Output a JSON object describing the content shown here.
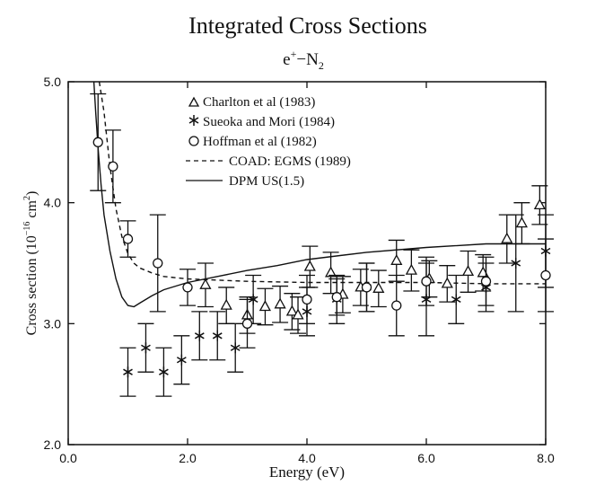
{
  "chart_data": {
    "type": "scatter",
    "title": "Integrated Cross Sections",
    "subtitle": {
      "base": "e",
      "sup": "+",
      "dash": "−",
      "base2": "N",
      "sub": "2"
    },
    "xlabel": "Energy (eV)",
    "ylabel": {
      "pre": "Cross section (10",
      "sup": "−16",
      "mid": " cm",
      "sup2": "2",
      "post": ")"
    },
    "xlim": [
      0.0,
      8.0
    ],
    "ylim": [
      2.0,
      5.0
    ],
    "xticks": [
      0.0,
      2.0,
      4.0,
      6.0,
      8.0
    ],
    "xtick_labels": [
      "0.0",
      "2.0",
      "4.0",
      "6.0",
      "8.0"
    ],
    "yticks": [
      2.0,
      3.0,
      4.0,
      5.0
    ],
    "ytick_labels": [
      "2.0",
      "3.0",
      "4.0",
      "5.0"
    ],
    "grid": false,
    "legend_position": "top-center",
    "series": [
      {
        "name": "Charlton et al (1983)",
        "kind": "points",
        "marker": "triangle",
        "points": [
          {
            "x": 2.3,
            "y": 3.32,
            "err": 0.18
          },
          {
            "x": 2.65,
            "y": 3.15,
            "err": 0.15
          },
          {
            "x": 3.0,
            "y": 3.07,
            "err": 0.15
          },
          {
            "x": 3.3,
            "y": 3.14,
            "err": 0.15
          },
          {
            "x": 3.55,
            "y": 3.16,
            "err": 0.15
          },
          {
            "x": 3.75,
            "y": 3.1,
            "err": 0.15
          },
          {
            "x": 3.85,
            "y": 3.07,
            "err": 0.15
          },
          {
            "x": 4.05,
            "y": 3.47,
            "err": 0.17
          },
          {
            "x": 4.4,
            "y": 3.42,
            "err": 0.17
          },
          {
            "x": 4.6,
            "y": 3.24,
            "err": 0.15
          },
          {
            "x": 4.9,
            "y": 3.3,
            "err": 0.15
          },
          {
            "x": 5.2,
            "y": 3.29,
            "err": 0.15
          },
          {
            "x": 5.5,
            "y": 3.52,
            "err": 0.17
          },
          {
            "x": 5.75,
            "y": 3.44,
            "err": 0.17
          },
          {
            "x": 6.05,
            "y": 3.37,
            "err": 0.15
          },
          {
            "x": 6.35,
            "y": 3.33,
            "err": 0.15
          },
          {
            "x": 6.7,
            "y": 3.43,
            "err": 0.17
          },
          {
            "x": 6.95,
            "y": 3.42,
            "err": 0.15
          },
          {
            "x": 7.35,
            "y": 3.7,
            "err": 0.2
          },
          {
            "x": 7.6,
            "y": 3.83,
            "err": 0.17
          },
          {
            "x": 7.9,
            "y": 3.98,
            "err": 0.16
          }
        ]
      },
      {
        "name": "Sueoka and Mori (1984)",
        "kind": "points",
        "marker": "asterisk",
        "points": [
          {
            "x": 1.0,
            "y": 2.6,
            "err": 0.2
          },
          {
            "x": 1.3,
            "y": 2.8,
            "err": 0.2
          },
          {
            "x": 1.6,
            "y": 2.6,
            "err": 0.2
          },
          {
            "x": 1.9,
            "y": 2.7,
            "err": 0.2
          },
          {
            "x": 2.2,
            "y": 2.9,
            "err": 0.2
          },
          {
            "x": 2.5,
            "y": 2.9,
            "err": 0.2
          },
          {
            "x": 2.8,
            "y": 2.8,
            "err": 0.2
          },
          {
            "x": 3.1,
            "y": 3.2,
            "err": 0.2
          },
          {
            "x": 4.0,
            "y": 3.1,
            "err": 0.2
          },
          {
            "x": 4.5,
            "y": 3.2,
            "err": 0.2
          },
          {
            "x": 5.0,
            "y": 3.3,
            "err": 0.2
          },
          {
            "x": 6.0,
            "y": 3.2,
            "err": 0.3
          },
          {
            "x": 6.5,
            "y": 3.2,
            "err": 0.2
          },
          {
            "x": 7.0,
            "y": 3.3,
            "err": 0.2
          },
          {
            "x": 7.5,
            "y": 3.5,
            "err": 0.4
          },
          {
            "x": 8.0,
            "y": 3.6,
            "err": 0.3
          }
        ]
      },
      {
        "name": "Hoffman et al (1982)",
        "kind": "points",
        "marker": "circle",
        "points": [
          {
            "x": 0.5,
            "y": 4.5,
            "err": 0.4
          },
          {
            "x": 0.75,
            "y": 4.3,
            "err": 0.3
          },
          {
            "x": 1.0,
            "y": 3.7,
            "err": 0.15
          },
          {
            "x": 1.5,
            "y": 3.5,
            "err": 0.4
          },
          {
            "x": 2.0,
            "y": 3.3,
            "err": 0.15
          },
          {
            "x": 3.0,
            "y": 3.0,
            "err": 0.2
          },
          {
            "x": 4.0,
            "y": 3.2,
            "err": 0.2
          },
          {
            "x": 4.5,
            "y": 3.22,
            "err": 0.15
          },
          {
            "x": 5.0,
            "y": 3.3,
            "err": 0.2
          },
          {
            "x": 5.5,
            "y": 3.15,
            "err": 0.25
          },
          {
            "x": 6.0,
            "y": 3.35,
            "err": 0.2
          },
          {
            "x": 7.0,
            "y": 3.35,
            "err": 0.2
          },
          {
            "x": 8.0,
            "y": 3.4,
            "err": 0.3
          }
        ]
      },
      {
        "name": "COAD: EGMS (1989)",
        "kind": "line",
        "dash": "5,4",
        "x": [
          0.52,
          0.6,
          0.7,
          0.8,
          0.9,
          1.0,
          1.1,
          1.2,
          1.4,
          1.6,
          2.0,
          2.5,
          3.0,
          4.0,
          5.0,
          6.0,
          7.0,
          8.0
        ],
        "y": [
          5.0,
          4.75,
          4.3,
          3.95,
          3.72,
          3.58,
          3.5,
          3.46,
          3.42,
          3.39,
          3.37,
          3.36,
          3.35,
          3.34,
          3.34,
          3.34,
          3.33,
          3.33
        ]
      },
      {
        "name": "DPM US(1.5)",
        "kind": "line",
        "dash": "",
        "x": [
          0.43,
          0.46,
          0.5,
          0.55,
          0.6,
          0.7,
          0.8,
          0.9,
          1.0,
          1.1,
          1.2,
          1.4,
          1.6,
          2.0,
          2.5,
          3.0,
          3.5,
          4.0,
          5.0,
          6.0,
          7.0,
          8.0
        ],
        "y": [
          5.0,
          4.75,
          4.45,
          4.15,
          3.9,
          3.6,
          3.37,
          3.22,
          3.15,
          3.14,
          3.17,
          3.23,
          3.28,
          3.34,
          3.39,
          3.44,
          3.48,
          3.53,
          3.59,
          3.63,
          3.66,
          3.66
        ]
      }
    ]
  }
}
